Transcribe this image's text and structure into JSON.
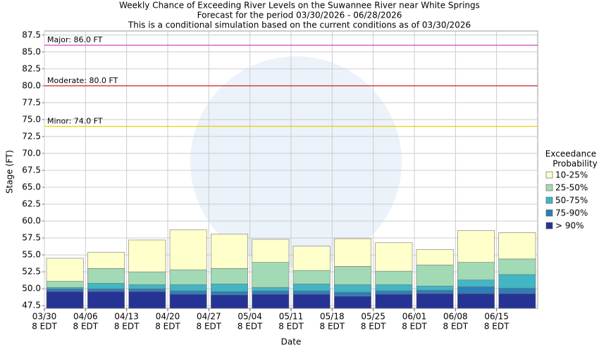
{
  "chart_data": {
    "type": "bar",
    "mode": "floating-levels",
    "title": "Weekly Chance of Exceeding River Levels on the Suwannee River near White Springs",
    "subtitle": [
      "Forecast for the period 03/30/2026 - 06/28/2026",
      "This is a conditional simulation based on the current conditions as of 03/30/2026"
    ],
    "x_label": "Date",
    "y_label": "Stage (FT)",
    "legend_title": [
      "Exceedance",
      "Probability"
    ],
    "categories": [
      [
        "03/30",
        "8 EDT"
      ],
      [
        "04/06",
        "8 EDT"
      ],
      [
        "04/13",
        "8 EDT"
      ],
      [
        "04/20",
        "8 EDT"
      ],
      [
        "04/27",
        "8 EDT"
      ],
      [
        "05/04",
        "8 EDT"
      ],
      [
        "05/11",
        "8 EDT"
      ],
      [
        "05/18",
        "8 EDT"
      ],
      [
        "05/25",
        "8 EDT"
      ],
      [
        "06/01",
        "8 EDT"
      ],
      [
        "06/08",
        "8 EDT"
      ],
      [
        "06/15",
        "8 EDT"
      ]
    ],
    "series": [
      {
        "name": "> 90%",
        "color": "#253494",
        "values": [
          49.6,
          49.6,
          49.6,
          49.2,
          49.1,
          49.2,
          49.2,
          48.9,
          49.2,
          49.3,
          49.3,
          49.3
        ]
      },
      {
        "name": "75-90%",
        "color": "#2c7fb8",
        "values": [
          50.0,
          50.0,
          50.0,
          49.7,
          49.6,
          49.7,
          49.7,
          49.5,
          49.7,
          49.8,
          50.3,
          50.1
        ]
      },
      {
        "name": "50-75%",
        "color": "#41b6c4",
        "values": [
          50.2,
          50.8,
          50.6,
          50.6,
          50.7,
          50.2,
          50.7,
          50.6,
          50.6,
          50.4,
          51.3,
          52.1
        ]
      },
      {
        "name": "25-50%",
        "color": "#a1dab4",
        "values": [
          51.1,
          53.0,
          52.5,
          52.8,
          53.0,
          53.9,
          52.7,
          53.3,
          52.6,
          53.5,
          53.9,
          54.4
        ]
      },
      {
        "name": "10-25%",
        "color": "#ffffcc",
        "values": [
          54.5,
          55.4,
          57.2,
          58.7,
          58.1,
          57.3,
          56.3,
          57.4,
          56.8,
          55.8,
          58.6,
          58.3
        ]
      }
    ],
    "thresholds": [
      {
        "label": "Major: 86.0 FT",
        "value": 86,
        "color": "#cc33cc"
      },
      {
        "label": "Moderate: 80.0 FT",
        "value": 80,
        "color": "#cc2222"
      },
      {
        "label": "Minor: 74.0 FT",
        "value": 74,
        "color": "#e6d200"
      }
    ],
    "ylim": [
      47.1,
      88.1
    ],
    "yticks": [
      47.5,
      {
        "value": 50,
        "label": "50.0"
      },
      52.5,
      {
        "value": 55,
        "label": "55.0"
      },
      57.5,
      {
        "value": 60,
        "label": "60.0"
      },
      62.5,
      {
        "value": 65,
        "label": "65.0"
      },
      67.5,
      {
        "value": 70,
        "label": "70.0"
      },
      72.5,
      {
        "value": 75,
        "label": "75.0"
      },
      77.5,
      {
        "value": 80,
        "label": "80.0"
      },
      82.5,
      {
        "value": 85,
        "label": "85.0"
      },
      87.5
    ],
    "grid": true
  }
}
